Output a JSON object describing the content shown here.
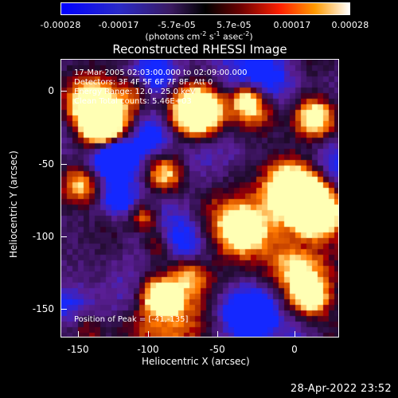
{
  "colorbar": {
    "ticks": [
      "-0.00028",
      "-0.00017",
      "-5.7e-05",
      "5.7e-05",
      "0.00017",
      "0.00028"
    ],
    "units_text": "(photons cm",
    "units_exp1": "-2",
    "units_mid": " s",
    "units_exp2": "-1",
    "units_mid2": " asec",
    "units_exp3": "-2",
    "units_end": ")"
  },
  "plot": {
    "title": "Reconstructed RHESSI Image",
    "info_lines": [
      "17-Mar-2005 02:03:00.000 to 02:09:00.000",
      "Detectors: 3F 4F 5F 6F 7F 8F, Att 0",
      "Energy Range: 12.0 - 25.0 keV",
      "Clean    Total counts: 5.46E+03"
    ],
    "peak_text": "Position of Peak = [-41,-135]",
    "x_axis": {
      "label": "Heliocentric X (arcsec)",
      "ticks": [
        "-150",
        "-100",
        "-50",
        "0"
      ]
    },
    "y_axis": {
      "label": "Heliocentric Y (arcsec)",
      "ticks": [
        "0",
        "-50",
        "-100",
        "-150"
      ]
    }
  },
  "footer": {
    "timestamp": "28-Apr-2022 23:52"
  }
}
